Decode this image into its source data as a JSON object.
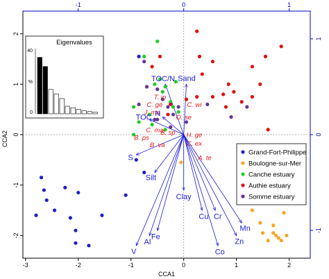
{
  "chart_data": {
    "type": "scatter",
    "xlabel": "CCA1",
    "ylabel": "CCA2",
    "xlim": [
      -3.05,
      2.4
    ],
    "ylim": [
      -2.45,
      2.45
    ],
    "x_ticks": [
      -3,
      -2,
      -1,
      0,
      1,
      2
    ],
    "y_ticks": [
      -2,
      -1,
      0,
      1,
      2
    ],
    "x_ticks_top": [
      -1,
      0,
      1
    ],
    "y_ticks_right": [
      -1,
      0,
      1
    ],
    "grid": false,
    "zero_lines": true,
    "legend_position": "lower-right",
    "sites": [
      {
        "name": "Grand-Fort-Philippe",
        "color": "#1f1fc8",
        "points": [
          [
            -0.85,
            1.55
          ],
          [
            -2.8,
            -1.6
          ],
          [
            -2.7,
            -0.85
          ],
          [
            -2.65,
            -1.1
          ],
          [
            -2.6,
            -1.3
          ],
          [
            -2.45,
            -1.5
          ],
          [
            -2.25,
            -1.05
          ],
          [
            -2.15,
            -1.65
          ],
          [
            -2.05,
            -1.9
          ],
          [
            -2.05,
            -2.15
          ],
          [
            -2.0,
            -1.15
          ],
          [
            -1.8,
            -2.2
          ],
          [
            -1.55,
            -1.6
          ],
          [
            -1.1,
            -1.2
          ],
          [
            -0.9,
            -0.5
          ],
          [
            -0.75,
            -0.75
          ]
        ]
      },
      {
        "name": "Boulogne-sur-Mer",
        "color": "#f5a623",
        "points": [
          [
            -0.05,
            -0.55
          ],
          [
            1.3,
            -1.5
          ],
          [
            1.45,
            -1.75
          ],
          [
            1.5,
            -1.95
          ],
          [
            1.6,
            -2.1
          ],
          [
            1.7,
            -1.8
          ],
          [
            1.7,
            -1.95
          ],
          [
            1.75,
            -2.0
          ],
          [
            1.8,
            -2.05
          ],
          [
            1.85,
            -2.1
          ],
          [
            1.9,
            -1.55
          ],
          [
            1.95,
            -2.0
          ]
        ]
      },
      {
        "name": "Canche estuary",
        "color": "#22cc22",
        "points": [
          [
            -0.95,
            0.55
          ],
          [
            -0.85,
            0.25
          ],
          [
            -0.75,
            1.55
          ],
          [
            -0.65,
            0.4
          ],
          [
            -0.55,
            1.0
          ],
          [
            -0.45,
            1.1
          ],
          [
            -0.4,
            0.85
          ],
          [
            -0.35,
            0.95
          ],
          [
            -0.25,
            0.65
          ],
          [
            -0.2,
            0.55
          ],
          [
            -0.15,
            1.05
          ],
          [
            -0.6,
            0.2
          ],
          [
            -0.5,
            1.85
          ],
          [
            -0.35,
            0.1
          ],
          [
            -0.1,
            0.45
          ],
          [
            -0.95,
            0.0
          ]
        ]
      },
      {
        "name": "Authie estuary",
        "color": "#dd1111",
        "points": [
          [
            -0.6,
            1.35
          ],
          [
            -0.45,
            1.55
          ],
          [
            -0.3,
            0.4
          ],
          [
            -0.25,
            0.6
          ],
          [
            0.05,
            0.7
          ],
          [
            0.25,
            0.75
          ],
          [
            0.3,
            1.55
          ],
          [
            0.55,
            1.45
          ],
          [
            0.55,
            0.75
          ],
          [
            0.8,
            0.55
          ],
          [
            0.85,
            1.0
          ],
          [
            1.1,
            0.65
          ],
          [
            1.3,
            0.75
          ],
          [
            1.45,
            1.0
          ],
          [
            1.3,
            1.35
          ],
          [
            1.55,
            1.55
          ],
          [
            1.6,
            0.1
          ],
          [
            1.85,
            1.75
          ],
          [
            0.95,
            0.85
          ],
          [
            0.25,
            2.05
          ],
          [
            0.35,
            1.2
          ],
          [
            0.75,
            0.8
          ]
        ]
      },
      {
        "name": "Somme estuary",
        "color": "#663399",
        "points": [
          [
            -0.75,
            1.45
          ],
          [
            -0.7,
            0.95
          ],
          [
            -0.5,
            0.9
          ],
          [
            -0.4,
            0.7
          ],
          [
            -0.3,
            0.55
          ],
          [
            -0.2,
            0.4
          ],
          [
            -0.1,
            0.55
          ],
          [
            -0.5,
            0.3
          ],
          [
            0.05,
            0.25
          ],
          [
            -0.25,
            0.15
          ],
          [
            0.45,
            0.6
          ],
          [
            0.9,
            0.35
          ],
          [
            1.2,
            0.55
          ],
          [
            -0.85,
            0.6
          ],
          [
            -0.55,
            0.3
          ]
        ]
      }
    ],
    "env_arrows": [
      {
        "label": "TOC/N",
        "x": -0.35,
        "y": 1.0
      },
      {
        "label": "Sand",
        "x": 0.05,
        "y": 1.0
      },
      {
        "label": "TOC",
        "x": -0.65,
        "y": 0.3
      },
      {
        "label": "N",
        "x": -0.4,
        "y": 0.35
      },
      {
        "label": "S",
        "x": -0.9,
        "y": -0.4
      },
      {
        "label": "Silt",
        "x": -0.55,
        "y": -0.75
      },
      {
        "label": "Clay",
        "x": 0.0,
        "y": -1.1
      },
      {
        "label": "Cu",
        "x": 0.35,
        "y": -1.5
      },
      {
        "label": "Cr",
        "x": 0.6,
        "y": -1.5
      },
      {
        "label": "Mn",
        "x": 1.1,
        "y": -1.75
      },
      {
        "label": "Zn",
        "x": 1.0,
        "y": -2.0
      },
      {
        "label": "Co",
        "x": 0.65,
        "y": -2.2
      },
      {
        "label": "Fe",
        "x": -0.5,
        "y": -1.9
      },
      {
        "label": "Al",
        "x": -0.65,
        "y": -2.0
      },
      {
        "label": "V",
        "x": -0.9,
        "y": -2.2
      }
    ],
    "species_labels": [
      {
        "label": "T. in",
        "x": -0.45,
        "y": 0.7
      },
      {
        "label": "C. gé",
        "x": -0.55,
        "y": 0.55
      },
      {
        "label": "J. ma",
        "x": -0.6,
        "y": 0.4
      },
      {
        "label": "C. wi",
        "x": 0.2,
        "y": 0.55
      },
      {
        "label": "O. se",
        "x": 0.0,
        "y": 0.3
      },
      {
        "label": "C. ma",
        "x": -0.55,
        "y": 0.05
      },
      {
        "label": "B. sp",
        "x": -0.3,
        "y": 0.0
      },
      {
        "label": "B. ps",
        "x": -0.8,
        "y": -0.1
      },
      {
        "label": "B. va",
        "x": -0.5,
        "y": -0.25
      },
      {
        "label": "H. ge",
        "x": 0.2,
        "y": -0.05
      },
      {
        "label": "C. ex",
        "x": 0.2,
        "y": -0.22
      },
      {
        "label": "A. te",
        "x": 0.4,
        "y": -0.5
      }
    ],
    "inset": {
      "title": "Eigenvalues",
      "y_tick_labels": [
        "40",
        "%",
        "0"
      ],
      "values": [
        37,
        31,
        16,
        13,
        10,
        5,
        4,
        3,
        2,
        1.5,
        1
      ]
    }
  }
}
